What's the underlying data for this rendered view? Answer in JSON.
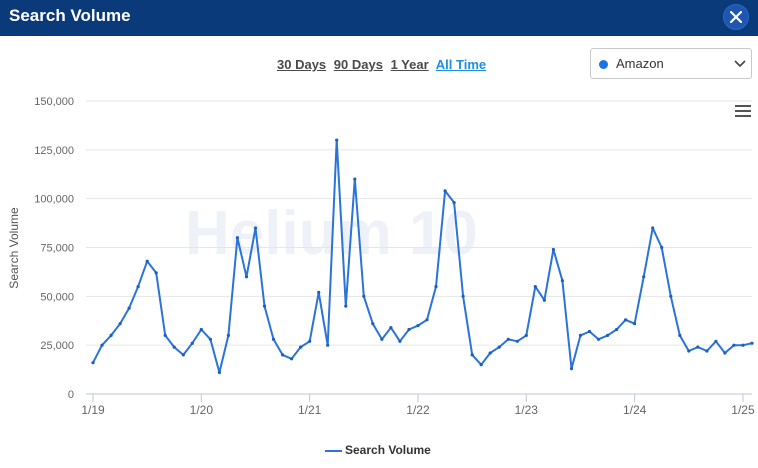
{
  "window": {
    "title": "Search Volume"
  },
  "icons": {
    "close": "close-icon",
    "menu": "hamburger-menu-icon",
    "dropdown": "chevron-down-icon"
  },
  "ranges": [
    {
      "label": "30 Days",
      "active": false
    },
    {
      "label": "90 Days",
      "active": false
    },
    {
      "label": "1 Year",
      "active": false
    },
    {
      "label": "All Time",
      "active": true
    }
  ],
  "marketplace": {
    "selected": "Amazon",
    "dot_color": "#1b73e8"
  },
  "watermark": "Helium 10",
  "colors": {
    "header": "#0b3a7a",
    "line": "#2a73d9",
    "active_range": "#1b8fe3"
  },
  "legend": {
    "label": "Search Volume"
  },
  "chart_data": {
    "type": "line",
    "ylabel": "Search Volume",
    "xlabel": "",
    "ylim": [
      0,
      150000
    ],
    "yticks": [
      "150,000",
      "125,000",
      "100,000",
      "75,000",
      "50,000",
      "25,000",
      "0"
    ],
    "ytick_values": [
      150000,
      125000,
      100000,
      75000,
      50000,
      25000,
      0
    ],
    "xticks": [
      "1/19",
      "1/20",
      "1/21",
      "1/22",
      "1/23",
      "1/24",
      "1/25"
    ],
    "grid": true,
    "legend_position": "bottom",
    "series": [
      {
        "name": "Search Volume",
        "x": [
          "2019-01",
          "2019-02",
          "2019-03",
          "2019-04",
          "2019-05",
          "2019-06",
          "2019-07",
          "2019-08",
          "2019-09",
          "2019-10",
          "2019-11",
          "2019-12",
          "2020-01",
          "2020-02",
          "2020-03",
          "2020-04",
          "2020-05",
          "2020-06",
          "2020-07",
          "2020-08",
          "2020-09",
          "2020-10",
          "2020-11",
          "2020-12",
          "2021-01",
          "2021-02",
          "2021-03",
          "2021-04",
          "2021-05",
          "2021-06",
          "2021-07",
          "2021-08",
          "2021-09",
          "2021-10",
          "2021-11",
          "2021-12",
          "2022-01",
          "2022-02",
          "2022-03",
          "2022-04",
          "2022-05",
          "2022-06",
          "2022-07",
          "2022-08",
          "2022-09",
          "2022-10",
          "2022-11",
          "2022-12",
          "2023-01",
          "2023-02",
          "2023-03",
          "2023-04",
          "2023-05",
          "2023-06",
          "2023-07",
          "2023-08",
          "2023-09",
          "2023-10",
          "2023-11",
          "2023-12",
          "2024-01",
          "2024-02",
          "2024-03",
          "2024-04",
          "2024-05",
          "2024-06",
          "2024-07",
          "2024-08",
          "2024-09",
          "2024-10",
          "2024-11",
          "2024-12",
          "2025-01",
          "2025-02"
        ],
        "values": [
          16000,
          25000,
          30000,
          36000,
          44000,
          55000,
          68000,
          62000,
          30000,
          24000,
          20000,
          26000,
          33000,
          28000,
          11000,
          30000,
          80000,
          60000,
          85000,
          45000,
          28000,
          20000,
          18000,
          24000,
          27000,
          52000,
          25000,
          130000,
          45000,
          110000,
          50000,
          36000,
          28000,
          34000,
          27000,
          33000,
          35000,
          38000,
          55000,
          104000,
          98000,
          50000,
          20000,
          15000,
          21000,
          24000,
          28000,
          27000,
          30000,
          55000,
          48000,
          74000,
          58000,
          13000,
          30000,
          32000,
          28000,
          30000,
          33000,
          38000,
          36000,
          60000,
          85000,
          75000,
          50000,
          30000,
          22000,
          24000,
          22000,
          27000,
          21000,
          25000,
          25000,
          26000
        ]
      }
    ]
  }
}
